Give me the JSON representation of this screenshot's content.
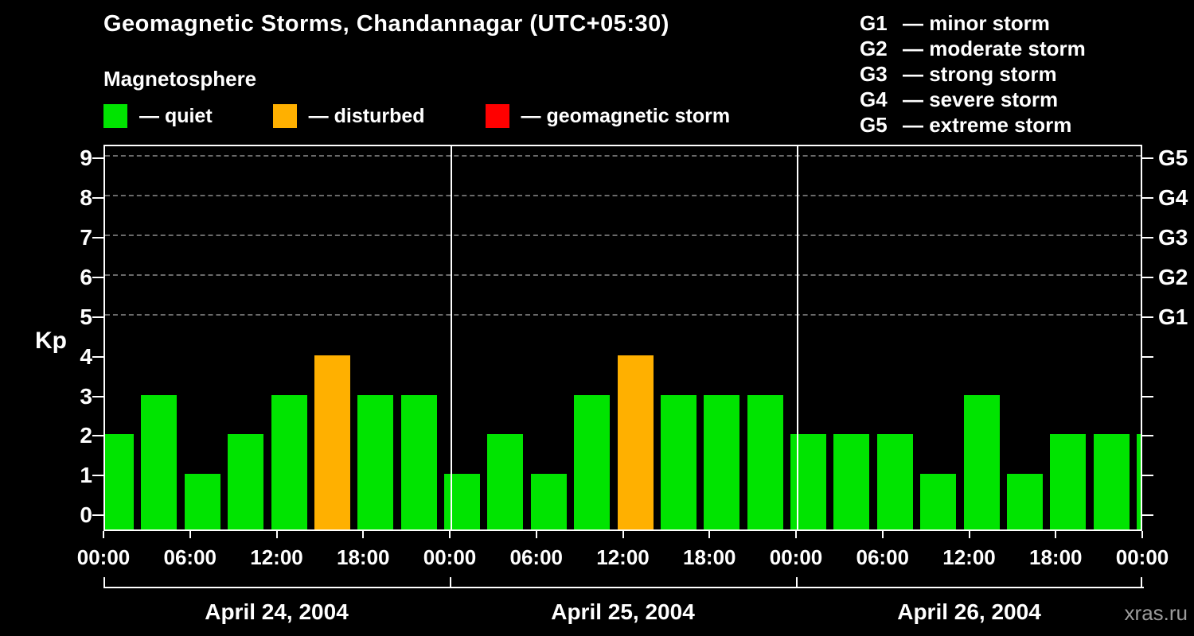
{
  "page": {
    "watermark": "xras.ru"
  },
  "header": {
    "title": "Geomagnetic Storms, Chandannagar (UTC+05:30)",
    "subtitle": "Magnetosphere"
  },
  "legend": {
    "items": [
      {
        "name": "quiet",
        "label": "— quiet",
        "color": "#00e400"
      },
      {
        "name": "disturbed",
        "label": "— disturbed",
        "color": "#ffb000"
      },
      {
        "name": "geomagnetic-storm",
        "label": "— geomagnetic storm",
        "color": "#ff0000"
      }
    ]
  },
  "storm_scale": [
    {
      "code": "G1",
      "label": "— minor storm",
      "kp": 5
    },
    {
      "code": "G2",
      "label": "— moderate storm",
      "kp": 6
    },
    {
      "code": "G3",
      "label": "— strong storm",
      "kp": 7
    },
    {
      "code": "G4",
      "label": "— severe storm",
      "kp": 8
    },
    {
      "code": "G5",
      "label": "— extreme storm",
      "kp": 9
    }
  ],
  "chart_data": {
    "type": "bar",
    "title": "Geomagnetic Storms, Chandannagar (UTC+05:30)",
    "ylabel": "Kp",
    "ylim": [
      -0.4,
      9.35
    ],
    "yticks": [
      0,
      1,
      2,
      3,
      4,
      5,
      6,
      7,
      8,
      9
    ],
    "gridlines_kp": [
      5,
      6,
      7,
      8,
      9
    ],
    "x_tick_labels": [
      "00:00",
      "06:00",
      "12:00",
      "18:00",
      "00:00",
      "06:00",
      "12:00",
      "18:00",
      "00:00",
      "06:00",
      "12:00",
      "18:00",
      "00:00"
    ],
    "bar_interval_hours": 3,
    "days": [
      {
        "date": "April 24, 2004",
        "values": [
          2,
          3,
          1,
          2,
          3,
          4,
          3,
          3
        ]
      },
      {
        "date": "April 25, 2004",
        "values": [
          1,
          2,
          1,
          3,
          4,
          3,
          3,
          3
        ]
      },
      {
        "date": "April 26, 2004",
        "values": [
          2,
          2,
          2,
          1,
          3,
          1,
          2,
          2
        ]
      }
    ],
    "trailing_value": 2,
    "colors": {
      "quiet": "#00e400",
      "disturbed": "#ffb000",
      "storm": "#ff0000"
    },
    "thresholds": {
      "disturbed_min_kp": 4,
      "storm_min_kp": 5
    },
    "legend_position": "top-left",
    "grid": "dashed-horizontal"
  }
}
